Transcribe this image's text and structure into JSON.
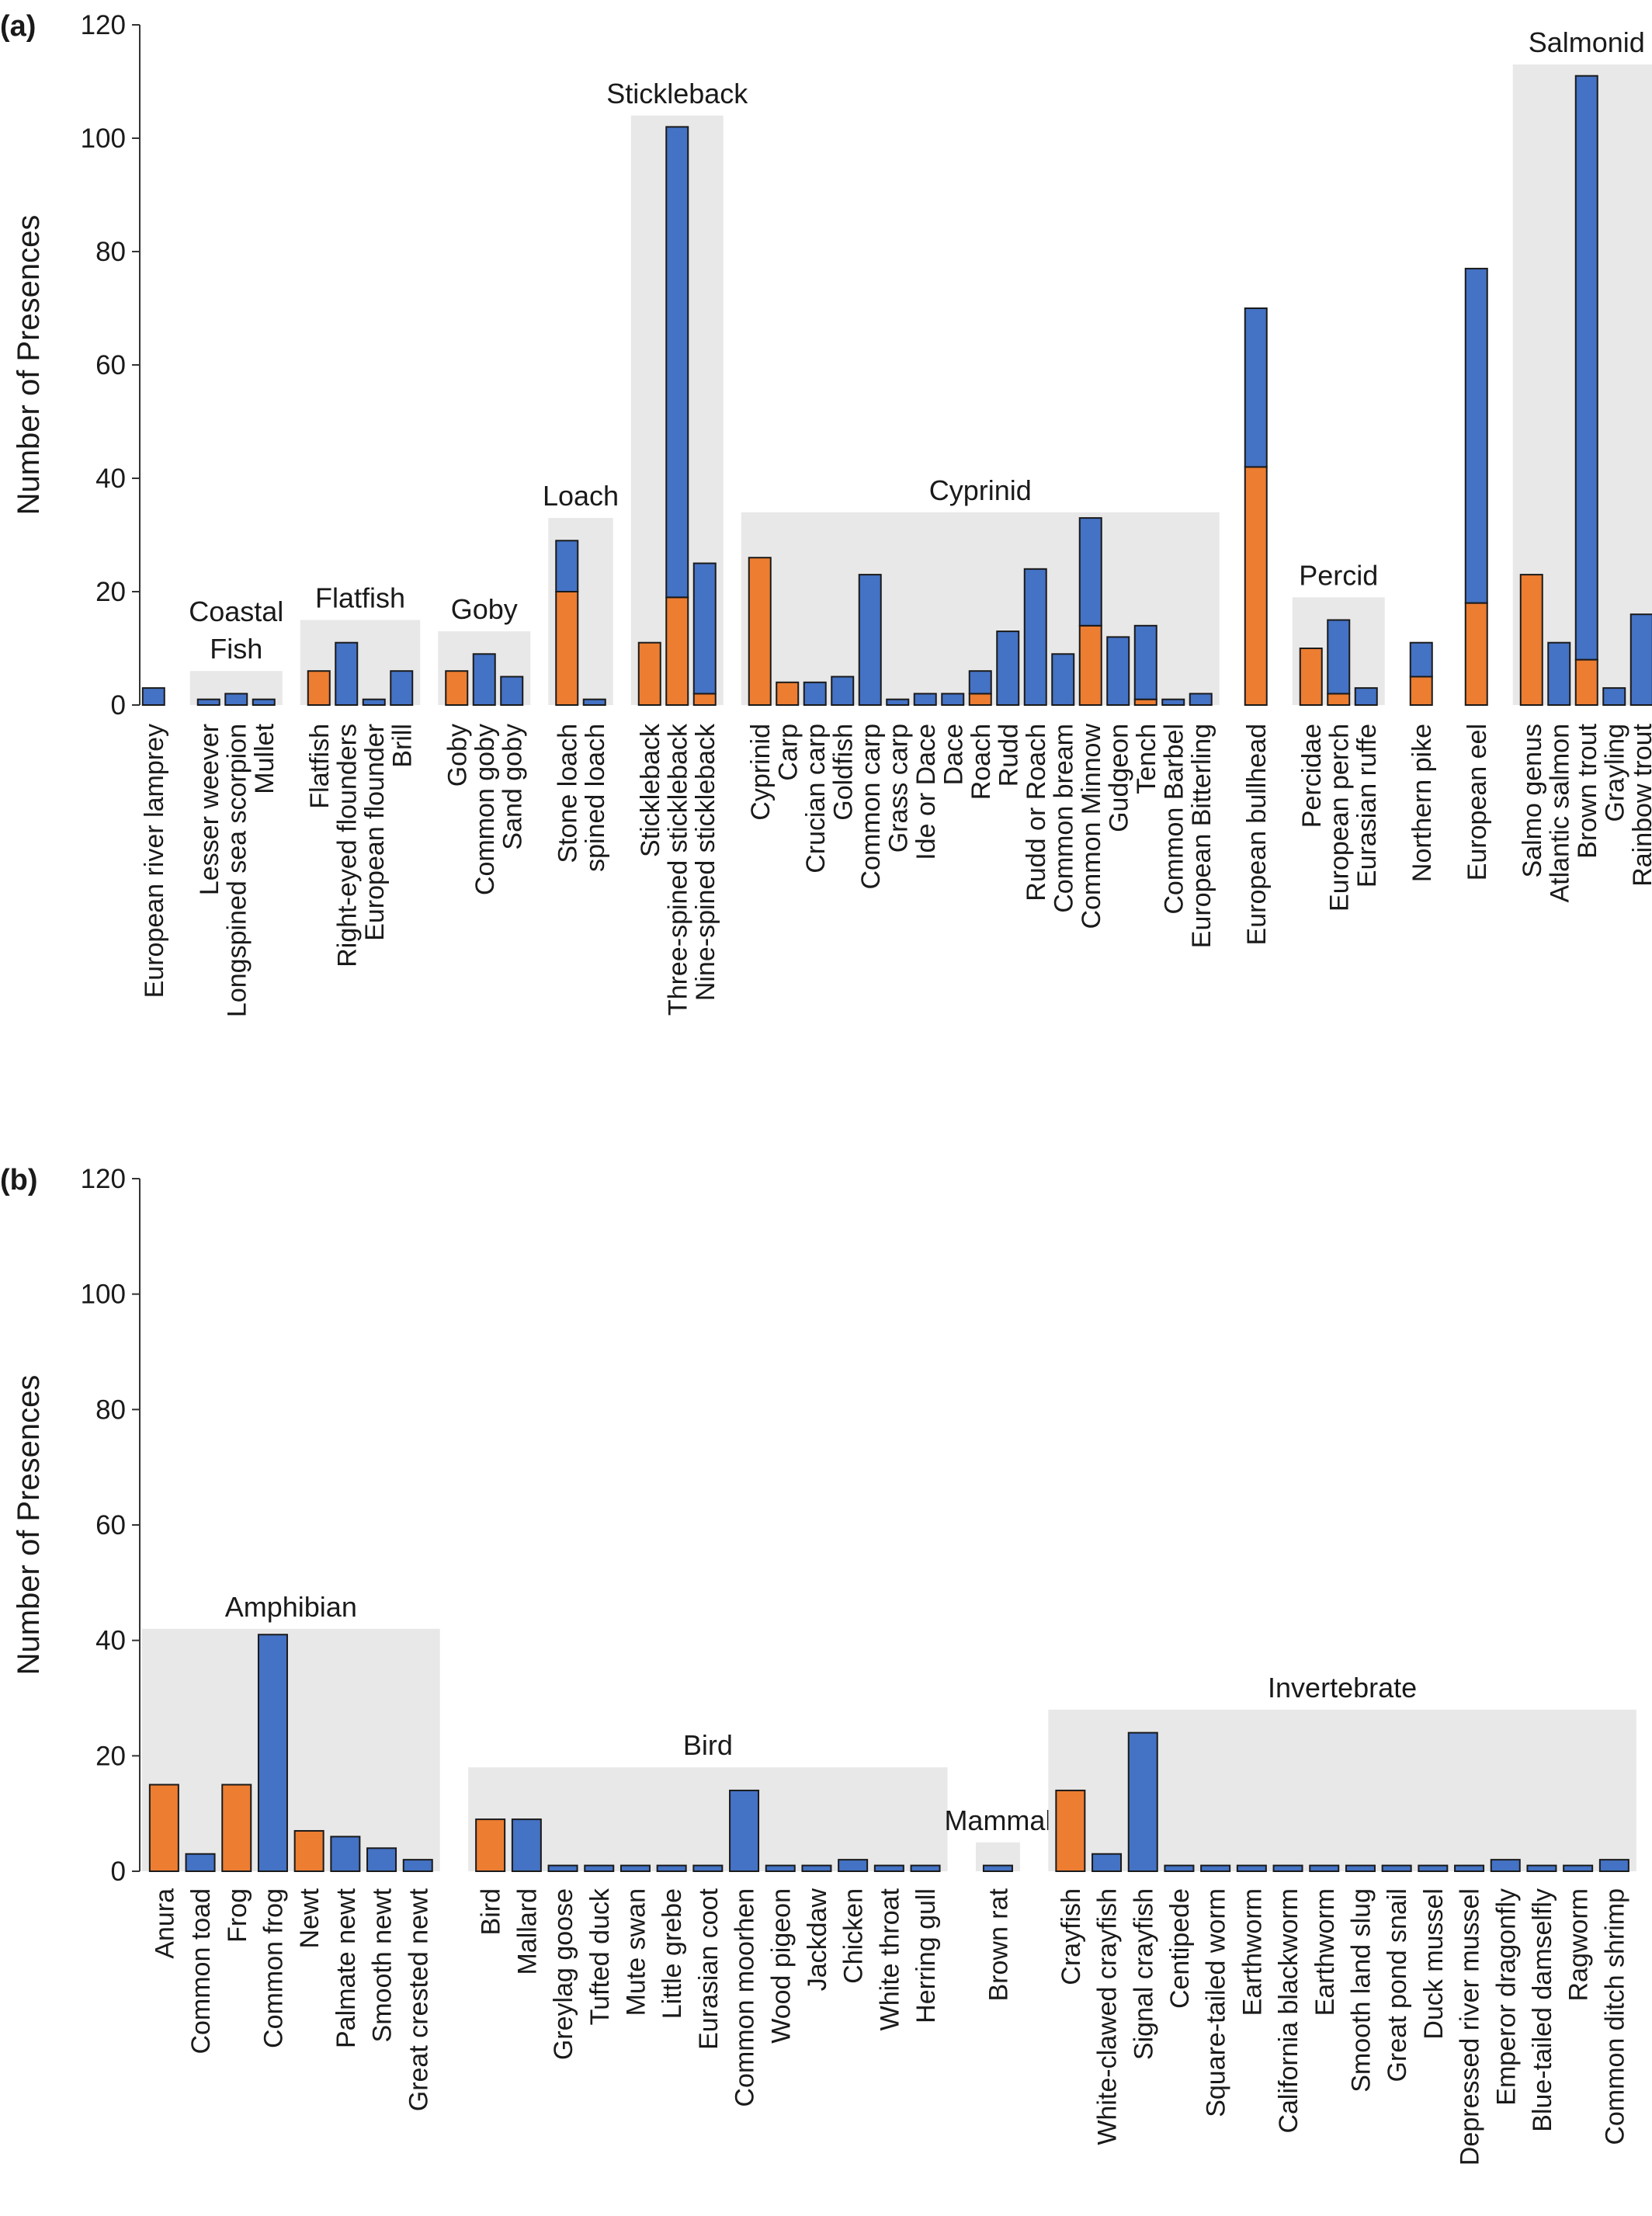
{
  "chart_data": [
    {
      "panel": "(a)",
      "type": "bar",
      "stacked": true,
      "ylabel": "Number of Presences",
      "ylim": [
        0,
        120
      ],
      "yticks": [
        0,
        20,
        40,
        60,
        80,
        100,
        120
      ],
      "grid": false,
      "legend": "none",
      "colors": {
        "orange": "#ed7d31",
        "blue": "#4472c4",
        "shade": "#e8e8e8"
      },
      "groups": [
        {
          "label": "Coastal\nFish",
          "from": 1,
          "to": 3
        },
        {
          "label": "Flatfish",
          "from": 4,
          "to": 7
        },
        {
          "label": "Goby",
          "from": 8,
          "to": 10
        },
        {
          "label": "Loach",
          "from": 11,
          "to": 12
        },
        {
          "label": "Stickleback",
          "from": 13,
          "to": 15
        },
        {
          "label": "Cyprinid",
          "from": 16,
          "to": 32
        },
        {
          "label": "Percid",
          "from": 34,
          "to": 36
        },
        {
          "label": "Salmonid",
          "from": 39,
          "to": 43
        }
      ],
      "categories": [
        "European river lamprey",
        "Lesser weever",
        "Longspined sea scorpion",
        "Mullet",
        "Flatfish",
        "Right-eyed flounders",
        "European flounder",
        "Brill",
        "Goby",
        "Common goby",
        "Sand goby",
        "Stone loach",
        "spined loach",
        "Stickleback",
        "Three-spined stickleback",
        "Nine-spined stickleback",
        "Cyprinid",
        "Carp",
        "Crucian carp",
        "Goldfish",
        "Common carp",
        "Grass carp",
        "Ide or Dace",
        "Dace",
        "Roach",
        "Rudd",
        "Rudd or Roach",
        "Common bream",
        "Common Minnow",
        "Gudgeon",
        "Tench",
        "Common Barbel",
        "European Bitterling",
        "European bullhead",
        "Percidae",
        "European perch",
        "Eurasian ruffe",
        "Northern pike",
        "European eel",
        "Salmo genus",
        "Atlantic salmon",
        "Brown trout",
        "Grayling",
        "Rainbow trout"
      ],
      "slots": [
        0,
        2,
        3,
        4,
        6,
        7,
        8,
        9,
        11,
        12,
        13,
        15,
        16,
        18,
        19,
        20,
        22,
        23,
        24,
        25,
        26,
        27,
        28,
        29,
        30,
        31,
        32,
        33,
        34,
        35,
        36,
        37,
        38,
        40,
        42,
        43,
        44,
        46,
        48,
        50,
        51,
        52,
        53,
        54
      ],
      "series": [
        {
          "color": "orange",
          "values": [
            0,
            0,
            0,
            0,
            6,
            0,
            0,
            0,
            6,
            0,
            0,
            20,
            0,
            11,
            19,
            2,
            26,
            4,
            0,
            0,
            0,
            0,
            0,
            0,
            2,
            0,
            0,
            0,
            14,
            0,
            1,
            0,
            0,
            42,
            10,
            2,
            0,
            5,
            18,
            23,
            0,
            8,
            0,
            0
          ]
        },
        {
          "color": "blue",
          "values": [
            3,
            1,
            2,
            1,
            0,
            11,
            1,
            6,
            0,
            9,
            5,
            9,
            1,
            0,
            83,
            23,
            0,
            0,
            4,
            5,
            23,
            1,
            2,
            2,
            4,
            13,
            24,
            9,
            19,
            12,
            13,
            1,
            2,
            28,
            0,
            13,
            3,
            6,
            59,
            0,
            11,
            103,
            3,
            16
          ]
        }
      ]
    },
    {
      "panel": "(b)",
      "type": "bar",
      "stacked": true,
      "ylabel": "Number of Presences",
      "ylim": [
        0,
        120
      ],
      "yticks": [
        0,
        20,
        40,
        60,
        80,
        100,
        120
      ],
      "grid": false,
      "legend": "none",
      "colors": {
        "orange": "#ed7d31",
        "blue": "#4472c4",
        "shade": "#e8e8e8"
      },
      "groups": [
        {
          "label": "Amphibian",
          "from": 0,
          "to": 7
        },
        {
          "label": "Bird",
          "from": 8,
          "to": 20
        },
        {
          "label": "Mammal",
          "from": 21,
          "to": 21
        },
        {
          "label": "Invertebrate",
          "from": 22,
          "to": 37
        }
      ],
      "categories": [
        "Anura",
        "Common toad",
        "Frog",
        "Common frog",
        "Newt",
        "Palmate newt",
        "Smooth newt",
        "Great crested newt",
        "Bird",
        "Mallard",
        "Greylag goose",
        "Tufted duck",
        "Mute swan",
        "Little grebe",
        "Eurasian coot",
        "Common moorhen",
        "Wood pigeon",
        "Jackdaw",
        "Chicken",
        "White throat",
        "Herring gull",
        "Brown rat",
        "Crayfish",
        "White-clawed crayfish",
        "Signal crayfish",
        "Centipede",
        "Square-tailed worm",
        "Earthworm",
        "California blackworm",
        "Earthworm",
        "Smooth land slug",
        "Great pond snail",
        "Duck mussel",
        "Depressed river mussel",
        "Emperor dragonfly",
        "Blue-tailed damselfly",
        "Ragworm",
        "Common ditch shrimp"
      ],
      "slots": [
        0,
        1,
        2,
        3,
        4,
        5,
        6,
        7,
        9,
        10,
        11,
        12,
        13,
        14,
        15,
        16,
        17,
        18,
        19,
        20,
        21,
        23,
        25,
        26,
        27,
        28,
        29,
        30,
        31,
        32,
        33,
        34,
        35,
        36,
        37,
        38,
        39,
        40
      ],
      "series": [
        {
          "color": "orange",
          "values": [
            15,
            0,
            15,
            0,
            7,
            0,
            0,
            0,
            9,
            0,
            0,
            0,
            0,
            0,
            0,
            0,
            0,
            0,
            0,
            0,
            0,
            0,
            14,
            0,
            0,
            0,
            0,
            0,
            0,
            0,
            0,
            0,
            0,
            0,
            0,
            0,
            0,
            0
          ]
        },
        {
          "color": "blue",
          "values": [
            0,
            3,
            0,
            41,
            0,
            6,
            4,
            2,
            0,
            9,
            1,
            1,
            1,
            1,
            1,
            14,
            1,
            1,
            2,
            1,
            1,
            1,
            0,
            3,
            24,
            1,
            1,
            1,
            1,
            1,
            1,
            1,
            1,
            1,
            2,
            1,
            1,
            2
          ]
        }
      ]
    }
  ]
}
